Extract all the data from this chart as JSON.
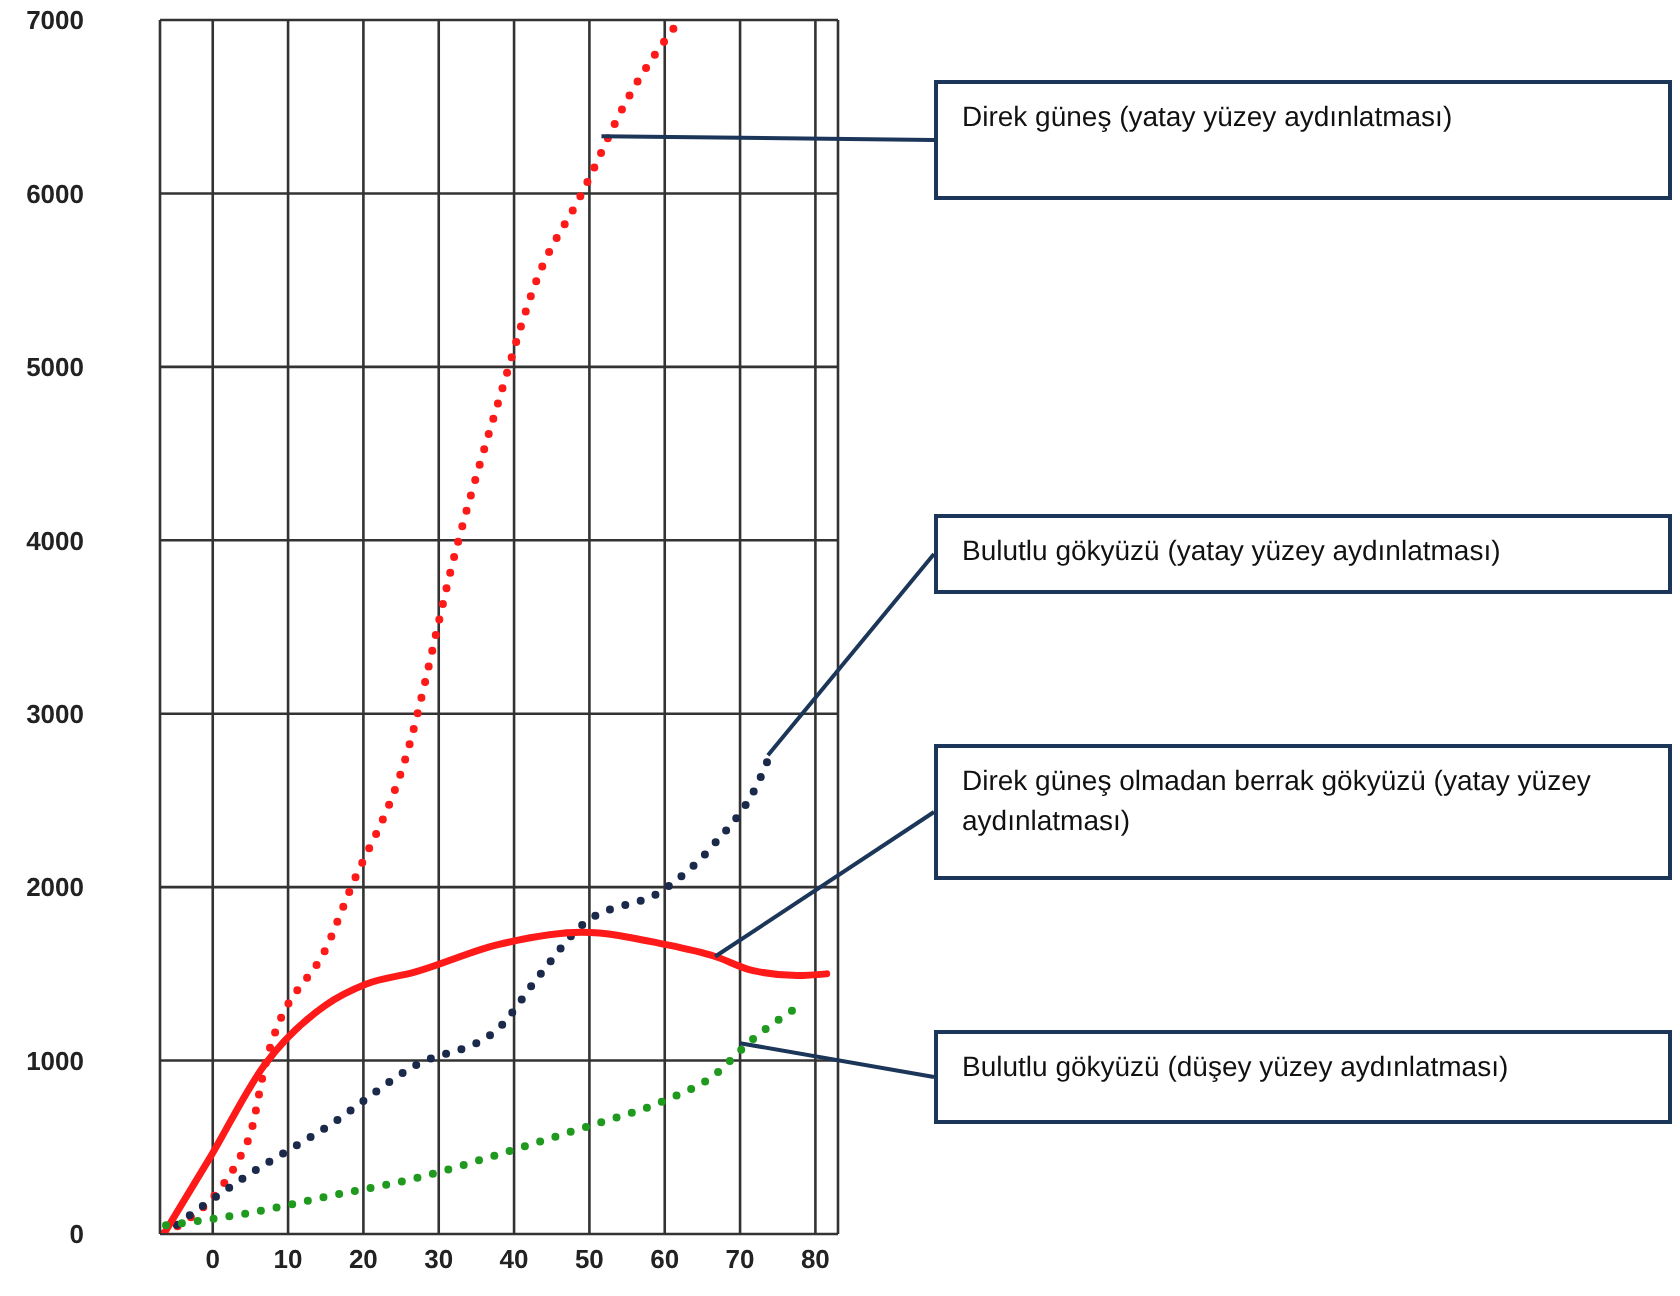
{
  "chart_data": {
    "type": "line",
    "xlim": [
      -7,
      83
    ],
    "xticks": [
      0,
      10,
      20,
      30,
      40,
      50,
      60,
      70,
      80
    ],
    "ylim": [
      0,
      7000
    ],
    "yticks": [
      0,
      1000,
      2000,
      3000,
      4000,
      5000,
      6000,
      7000
    ],
    "grid": true,
    "marker": "none",
    "series": [
      {
        "color": "#ff1a1a",
        "line_style": "dotted",
        "x": [
          -6.5,
          4.7,
          7,
          15.6,
          18,
          25.5,
          32.5,
          38,
          43,
          49,
          55,
          62
        ],
        "values": [
          0,
          540,
          980,
          1700,
          1960,
          2730,
          3980,
          4810,
          5500,
          6000,
          6540,
          7000
        ]
      },
      {
        "color": "#1b2a4a",
        "line_style": "dotted",
        "x": [
          -6.5,
          4.7,
          15.6,
          26.8,
          37.8,
          43,
          49,
          60,
          66.4,
          73.2,
          74.2
        ],
        "values": [
          0,
          340,
          630,
          970,
          1180,
          1470,
          1780,
          1990,
          2240,
          2680,
          2790
        ]
      },
      {
        "color": "#ff1a1a",
        "line_style": "solid",
        "x": [
          -6.5,
          -0.5,
          6.8,
          15,
          20.3,
          26.8,
          38,
          49,
          60,
          66.7,
          71.6,
          77.6,
          81.5
        ],
        "values": [
          0,
          430,
          970,
          1320,
          1440,
          1510,
          1670,
          1740,
          1670,
          1600,
          1520,
          1490,
          1500
        ]
      },
      {
        "color": "#1f9a1f",
        "line_style": "dotted",
        "x": [
          -6.2,
          4.7,
          15.6,
          26.8,
          38,
          49,
          60,
          66.4,
          71.6,
          78.4
        ],
        "values": [
          50,
          120,
          220,
          320,
          460,
          610,
          770,
          910,
          1120,
          1330
        ]
      }
    ],
    "annotations": [
      {
        "text": "Direk güneş  (yatay yüzey aydınlatması)",
        "x": 51.6,
        "y": 6330
      },
      {
        "text": "Bulutlu gökyüzü  (yatay yüzey aydınlatması)",
        "x": 73.7,
        "y": 2760
      },
      {
        "text": "Direk güneş olmadan berrak gökyüzü (yatay yüzey aydınlatması)",
        "x": 66.7,
        "y": 1600
      },
      {
        "text": "Bulutlu gökyüzü  (düşey  yüzey aydınlatması)",
        "x": 70,
        "y": 1100
      }
    ]
  }
}
